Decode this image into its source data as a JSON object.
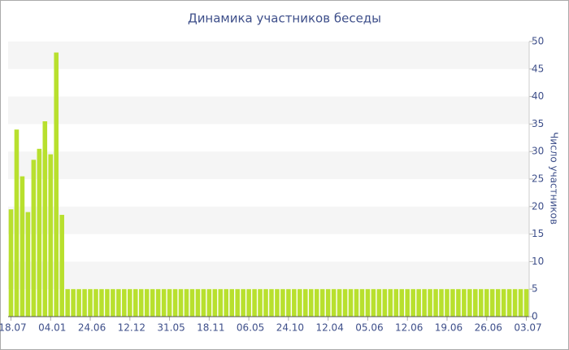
{
  "chart_data": {
    "type": "bar",
    "title": "Динамика участников беседы",
    "y_axis_label": "Число участников",
    "categories": [
      "18.07",
      null,
      null,
      null,
      null,
      null,
      null,
      "04.01",
      null,
      null,
      null,
      null,
      null,
      null,
      "24.06",
      null,
      null,
      null,
      null,
      null,
      null,
      "12.12",
      null,
      null,
      null,
      null,
      null,
      null,
      "31.05",
      null,
      null,
      null,
      null,
      null,
      null,
      "18.11",
      null,
      null,
      null,
      null,
      null,
      null,
      "06.05",
      null,
      null,
      null,
      null,
      null,
      null,
      "24.10",
      null,
      null,
      null,
      null,
      null,
      null,
      "12.04",
      null,
      null,
      null,
      null,
      null,
      null,
      "05.06",
      null,
      null,
      null,
      null,
      null,
      null,
      "12.06",
      null,
      null,
      null,
      null,
      null,
      null,
      "19.06",
      null,
      null,
      null,
      null,
      null,
      null,
      "26.06",
      null,
      null,
      null,
      null,
      null,
      null,
      "03.07"
    ],
    "values": [
      19.5,
      34,
      25.5,
      19,
      28.5,
      30.5,
      35.5,
      29.5,
      48,
      18.5,
      5,
      5,
      5,
      5,
      5,
      5,
      5,
      5,
      5,
      5,
      5,
      5,
      5,
      5,
      5,
      5,
      5,
      5,
      5,
      5,
      5,
      5,
      5,
      5,
      5,
      5,
      5,
      5,
      5,
      5,
      5,
      5,
      5,
      5,
      5,
      5,
      5,
      5,
      5,
      5,
      5,
      5,
      5,
      5,
      5,
      5,
      5,
      5,
      5,
      5,
      5,
      5,
      5,
      5,
      5,
      5,
      5,
      5,
      5,
      5,
      5,
      5,
      5,
      5,
      5,
      5,
      5,
      5,
      5,
      5,
      5,
      5,
      5,
      5,
      5,
      5,
      5,
      5,
      5,
      5,
      5,
      5
    ],
    "color": "#b8e02e",
    "ylim": [
      0,
      50
    ],
    "yticks": [
      0,
      5,
      10,
      15,
      20,
      25,
      30,
      35,
      40,
      45,
      50
    ],
    "grid": "bands",
    "y_axis_side": "right"
  }
}
